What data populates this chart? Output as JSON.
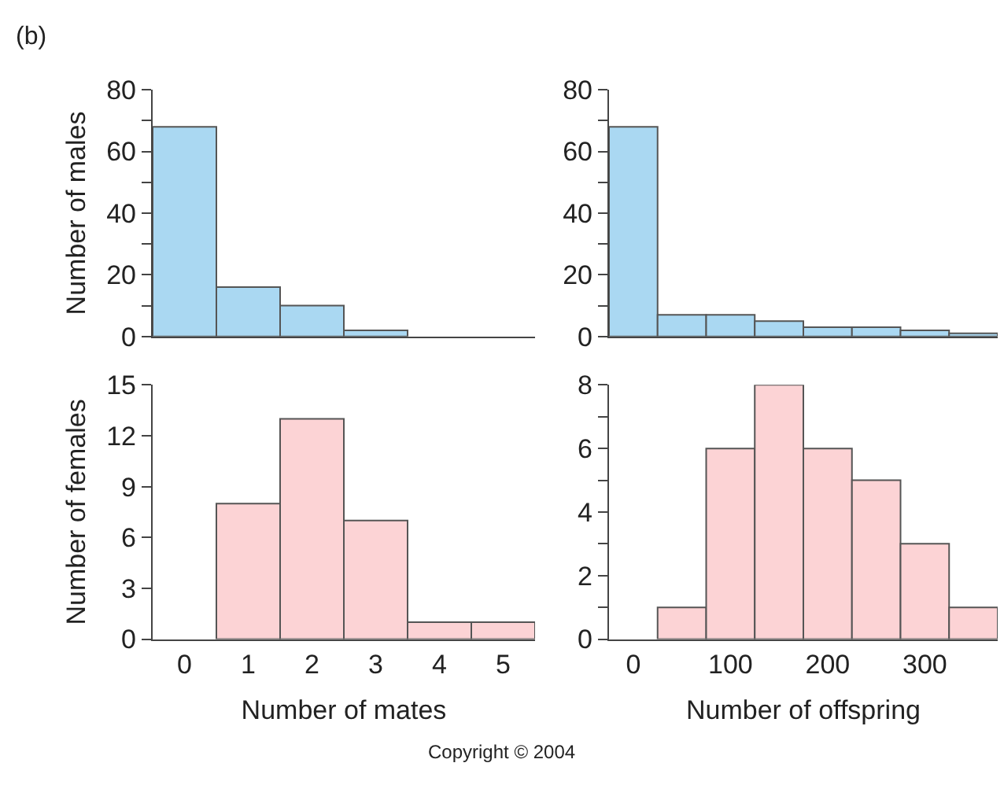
{
  "chart_data": [
    {
      "type": "histogram",
      "ylabel": "Number of males",
      "annotations": [
        "(b)"
      ],
      "bins": [
        -0.5,
        0.5,
        1.5,
        2.5,
        3.5,
        4.5,
        5.5
      ],
      "values": [
        68,
        16,
        10,
        2,
        0,
        0
      ],
      "color": "#aad8f2",
      "xlim": [
        -0.5,
        5.5
      ],
      "ylim": [
        0,
        80
      ],
      "yticks": [
        0,
        {
          "value": 10,
          "label": null
        },
        20,
        {
          "value": 30,
          "label": null
        },
        40,
        {
          "value": 50,
          "label": null
        },
        60,
        {
          "value": 70,
          "label": null
        },
        80
      ],
      "tick_labels": "y"
    },
    {
      "type": "histogram",
      "bins": [
        -25,
        25,
        75,
        125,
        175,
        225,
        275,
        325,
        375
      ],
      "values": [
        68,
        7,
        7,
        5,
        3,
        3,
        2,
        1
      ],
      "color": "#aad8f2",
      "xlim": [
        -25,
        375
      ],
      "ylim": [
        0,
        80
      ],
      "yticks": [
        0,
        {
          "value": 10,
          "label": null
        },
        20,
        {
          "value": 30,
          "label": null
        },
        40,
        {
          "value": 50,
          "label": null
        },
        60,
        {
          "value": 70,
          "label": null
        },
        80
      ],
      "tick_labels": "y"
    },
    {
      "type": "histogram",
      "xlabel": "Number of mates",
      "ylabel": "Number of females",
      "bins": [
        -0.5,
        0.5,
        1.5,
        2.5,
        3.5,
        4.5,
        5.5
      ],
      "values": [
        0,
        8,
        13,
        7,
        1,
        1
      ],
      "color": "#fcd3d5",
      "xlim": [
        -0.5,
        5.5
      ],
      "xticks": [
        0,
        1,
        2,
        3,
        4,
        5
      ],
      "ylim": [
        0,
        15
      ],
      "yticks": [
        0,
        3,
        6,
        9,
        12,
        15
      ]
    },
    {
      "type": "histogram",
      "xlabel": "Number of offspring",
      "annotations": [
        "Copyright © 2004"
      ],
      "bins": [
        -25,
        25,
        75,
        125,
        175,
        225,
        275,
        325,
        375
      ],
      "values": [
        0,
        1,
        6,
        8,
        6,
        5,
        3,
        1
      ],
      "color": "#fcd3d5",
      "xlim": [
        -25,
        375
      ],
      "xticks": [
        0,
        100,
        200,
        300
      ],
      "ylim": [
        0,
        8
      ],
      "yticks": [
        0,
        {
          "value": 1,
          "label": null
        },
        2,
        {
          "value": 3,
          "label": null
        },
        4,
        {
          "value": 5,
          "label": null
        },
        6,
        {
          "value": 7,
          "label": null
        },
        8
      ]
    }
  ]
}
